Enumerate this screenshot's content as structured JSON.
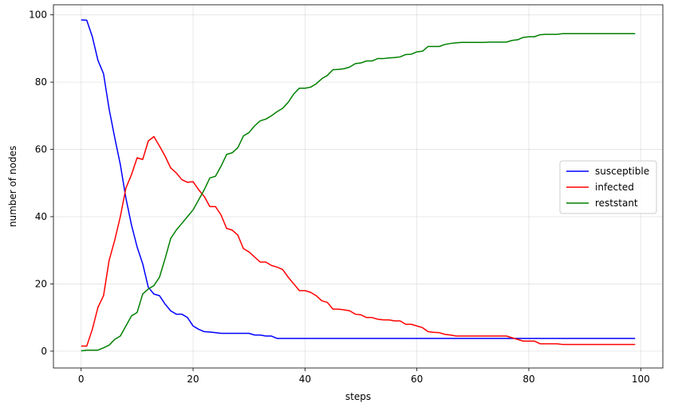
{
  "chart_data": {
    "type": "line",
    "title": "",
    "xlabel": "steps",
    "ylabel": "number of nodes",
    "xlim": [
      -4.95,
      103.95
    ],
    "ylim": [
      -5,
      103
    ],
    "xticks": [
      0,
      20,
      40,
      60,
      80,
      100
    ],
    "yticks": [
      0,
      20,
      40,
      60,
      80,
      100
    ],
    "grid": true,
    "legend_position": "center-right",
    "x": [
      0,
      1,
      2,
      3,
      4,
      5,
      6,
      7,
      8,
      9,
      10,
      11,
      12,
      13,
      14,
      15,
      16,
      17,
      18,
      19,
      20,
      21,
      22,
      23,
      24,
      25,
      26,
      27,
      28,
      29,
      30,
      31,
      32,
      33,
      34,
      35,
      36,
      37,
      38,
      39,
      40,
      41,
      42,
      43,
      44,
      45,
      46,
      47,
      48,
      49,
      50,
      51,
      52,
      53,
      54,
      55,
      56,
      57,
      58,
      59,
      60,
      61,
      62,
      63,
      64,
      65,
      66,
      67,
      68,
      69,
      70,
      71,
      72,
      73,
      74,
      75,
      76,
      77,
      78,
      79,
      80,
      81,
      82,
      83,
      84,
      85,
      86,
      87,
      88,
      89,
      90,
      91,
      92,
      93,
      94,
      95,
      96,
      97,
      98,
      99
    ],
    "series": [
      {
        "name": "susceptible",
        "color": "#0000ff",
        "values": [
          98.5,
          98.4,
          93.5,
          86.5,
          82.5,
          72,
          63.5,
          55.5,
          45.5,
          37.5,
          31,
          26,
          19,
          17,
          16.5,
          14,
          12,
          11,
          11,
          10,
          7.5,
          6.5,
          5.8,
          5.7,
          5.5,
          5.3,
          5.3,
          5.3,
          5.3,
          5.3,
          5.3,
          4.8,
          4.8,
          4.5,
          4.5,
          3.8,
          3.8,
          3.8,
          3.8,
          3.8,
          3.8,
          3.8,
          3.8,
          3.8,
          3.8,
          3.8,
          3.8,
          3.8,
          3.8,
          3.8,
          3.8,
          3.8,
          3.8,
          3.8,
          3.8,
          3.8,
          3.8,
          3.8,
          3.8,
          3.8,
          3.8,
          3.8,
          3.8,
          3.8,
          3.8,
          3.8,
          3.8,
          3.8,
          3.8,
          3.8,
          3.8,
          3.8,
          3.8,
          3.8,
          3.8,
          3.8,
          3.8,
          3.8,
          3.8,
          3.8,
          3.8,
          3.8,
          3.8,
          3.8,
          3.8,
          3.8,
          3.8,
          3.8,
          3.8,
          3.8,
          3.8,
          3.8,
          3.8,
          3.8,
          3.8,
          3.8,
          3.8,
          3.8,
          3.8,
          3.8
        ]
      },
      {
        "name": "infected",
        "color": "#ff0000",
        "values": [
          1.5,
          1.5,
          6.5,
          13,
          16.5,
          27,
          33,
          40,
          48.5,
          52.5,
          57.5,
          57,
          62.5,
          63.8,
          61,
          58,
          54.5,
          53,
          51,
          50.2,
          50.4,
          48,
          46,
          43,
          43,
          40.5,
          36.5,
          36,
          34.5,
          30.5,
          29.5,
          28,
          26.5,
          26.5,
          25.5,
          25,
          24.3,
          22,
          20,
          18,
          18,
          17.5,
          16.5,
          15,
          14.5,
          12.5,
          12.5,
          12.3,
          12,
          11,
          10.8,
          10,
          10,
          9.5,
          9.3,
          9.3,
          9,
          9,
          8,
          8,
          7.5,
          7,
          5.8,
          5.6,
          5.5,
          5,
          4.8,
          4.5,
          4.5,
          4.5,
          4.5,
          4.5,
          4.5,
          4.5,
          4.5,
          4.5,
          4.5,
          4,
          3.5,
          3,
          3,
          3,
          2.2,
          2.2,
          2.2,
          2.2,
          2,
          2,
          2,
          2,
          2,
          2,
          2,
          2,
          2,
          2,
          2,
          2,
          2,
          2
        ]
      },
      {
        "name": "reststant",
        "color": "#008000",
        "values": [
          0.1,
          0.3,
          0.3,
          0.3,
          1,
          1.8,
          3.5,
          4.5,
          7.5,
          10.5,
          11.5,
          17,
          18.5,
          19.5,
          22,
          27.5,
          33.5,
          36,
          38,
          40,
          42,
          45,
          48,
          51.5,
          52,
          55,
          58.5,
          59,
          60.5,
          64,
          65,
          67,
          68.5,
          69,
          70,
          71.2,
          72.2,
          74,
          76.5,
          78.2,
          78.2,
          78.5,
          79.5,
          81,
          82,
          83.7,
          83.8,
          84,
          84.5,
          85.5,
          85.7,
          86.3,
          86.3,
          87,
          87,
          87.2,
          87.3,
          87.5,
          88.2,
          88.3,
          89,
          89.2,
          90.6,
          90.6,
          90.6,
          91.2,
          91.5,
          91.7,
          91.8,
          91.8,
          91.8,
          91.8,
          91.8,
          91.9,
          91.9,
          91.9,
          91.9,
          92.4,
          92.6,
          93.3,
          93.5,
          93.5,
          94.1,
          94.2,
          94.2,
          94.2,
          94.4,
          94.4,
          94.4,
          94.4,
          94.4,
          94.4,
          94.4,
          94.4,
          94.4,
          94.4,
          94.4,
          94.4,
          94.4,
          94.4
        ]
      }
    ]
  }
}
